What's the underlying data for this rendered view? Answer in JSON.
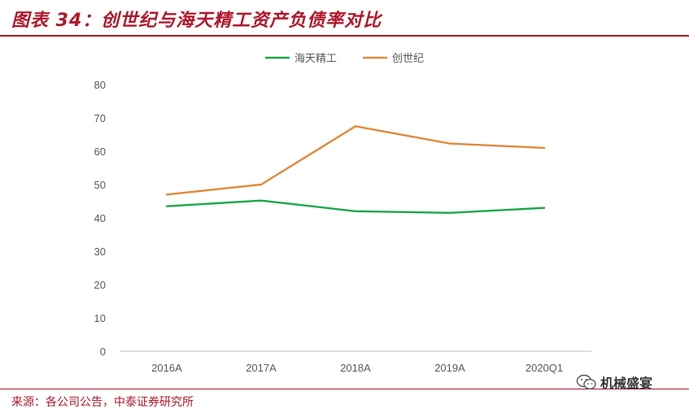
{
  "header": {
    "title": "图表 34：创世纪与海天精工资产负债率对比"
  },
  "footer": {
    "source": "来源：各公司公告，中泰证券研究所",
    "watermark": "机械盛宴",
    "watermark_icon": "wechat-icon"
  },
  "colors": {
    "accent": "#b0172b",
    "haitian": "#1aa84b",
    "chuangshiji": "#e08a3c"
  },
  "chart_data": {
    "type": "line",
    "categories": [
      "2016A",
      "2017A",
      "2018A",
      "2019A",
      "2020Q1"
    ],
    "series": [
      {
        "name": "海天精工",
        "color": "#1aa84b",
        "values": [
          43.5,
          45.2,
          42.0,
          41.5,
          43.0
        ]
      },
      {
        "name": "创世纪",
        "color": "#e08a3c",
        "values": [
          47.0,
          50.0,
          67.5,
          62.3,
          61.0
        ]
      }
    ],
    "ylim": [
      0,
      80
    ],
    "yticks": [
      0,
      10,
      20,
      30,
      40,
      50,
      60,
      70,
      80
    ],
    "grid": false,
    "legend": "top-center",
    "title": "",
    "xlabel": "",
    "ylabel": ""
  }
}
